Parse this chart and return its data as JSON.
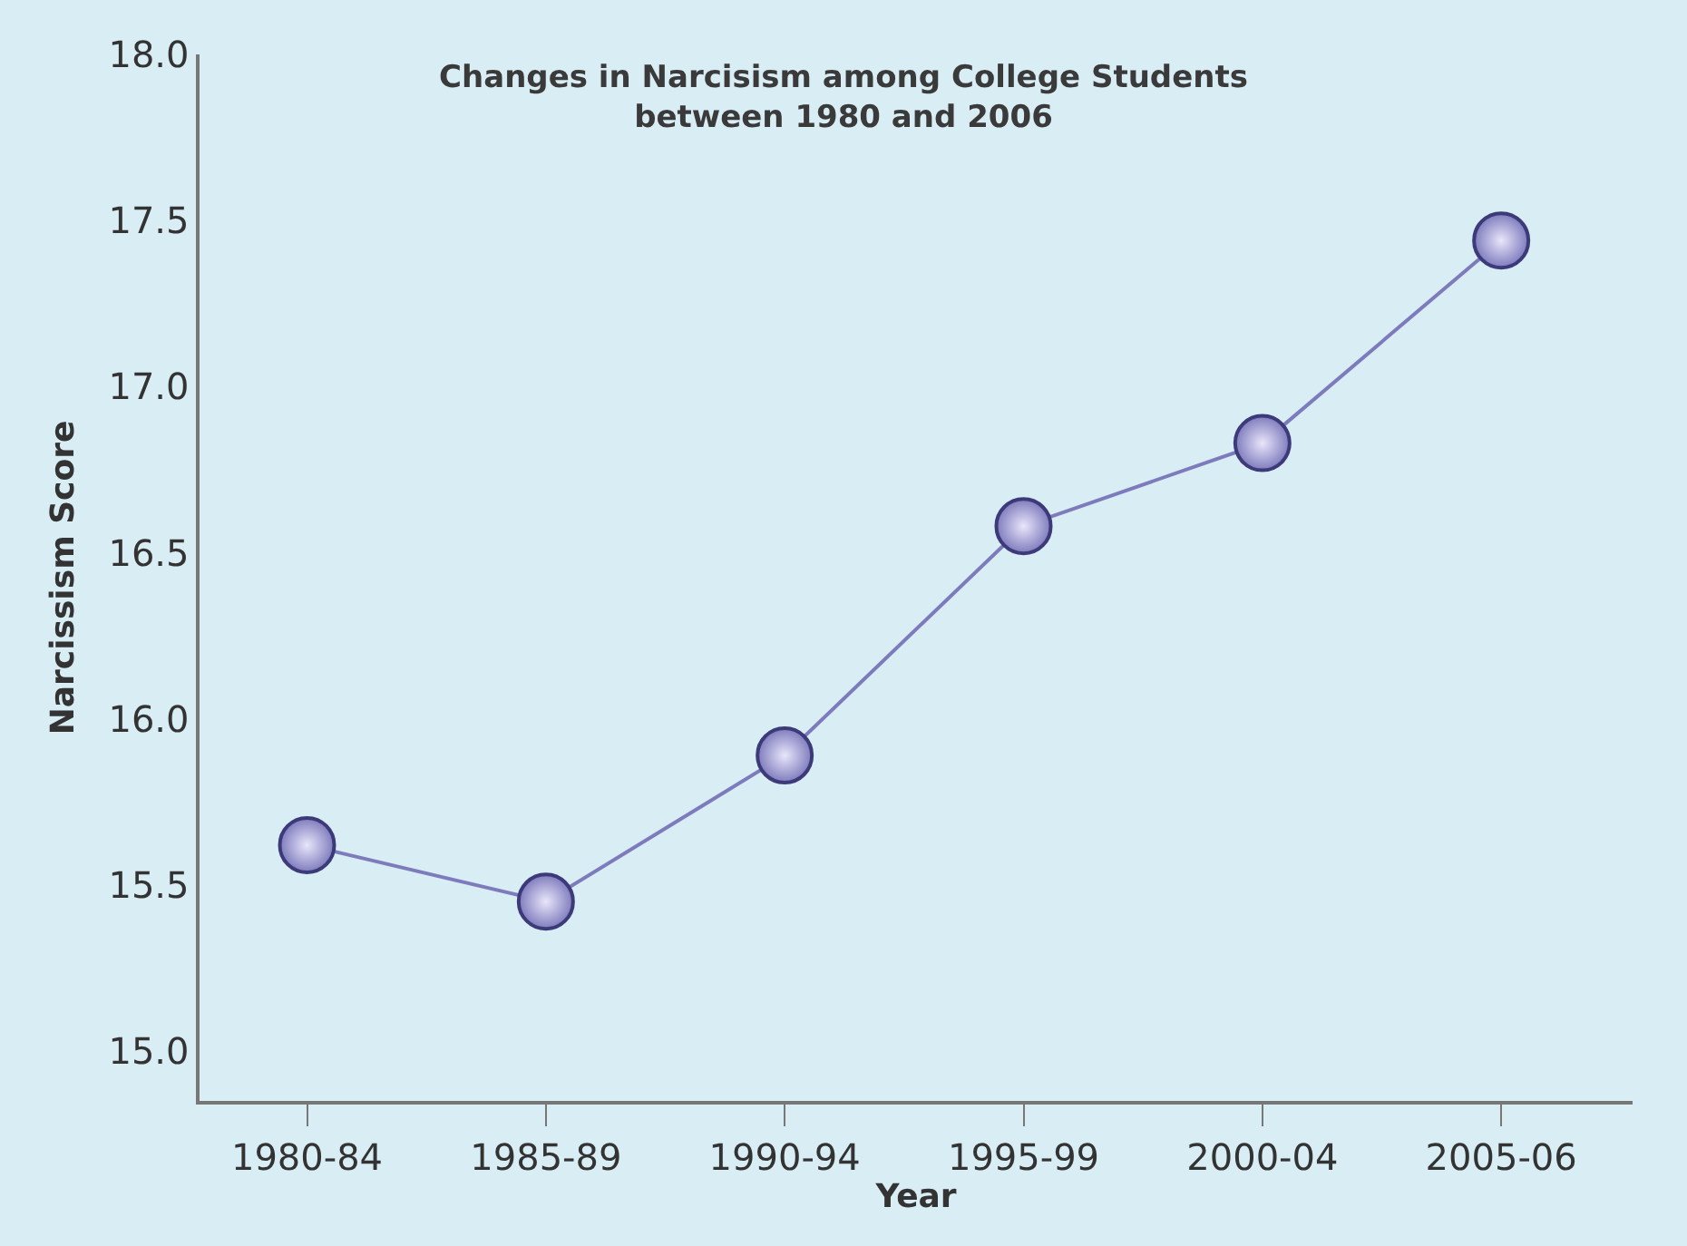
{
  "chart_data": {
    "type": "line",
    "title": "Changes in Narcisism among College Students\nbetween 1980 and 2006",
    "xlabel": "Year",
    "ylabel": "Narcissism Score",
    "categories": [
      "1980-84",
      "1985-89",
      "1990-94",
      "1995-99",
      "2000-04",
      "2005-06"
    ],
    "series": [
      {
        "color": "#7e7bbd",
        "values": [
          15.62,
          15.45,
          15.89,
          16.58,
          16.83,
          17.44
        ]
      }
    ],
    "ylim": [
      14.85,
      18.0
    ],
    "yticks": [
      {
        "value": 15.0,
        "label": "15.0"
      },
      {
        "value": 15.5,
        "label": "15.5"
      },
      {
        "value": 16.0,
        "label": "16.0"
      },
      {
        "value": 16.5,
        "label": "16.5"
      },
      {
        "value": 17.0,
        "label": "17.0"
      },
      {
        "value": 17.5,
        "label": "17.5"
      },
      {
        "value": 18.0,
        "label": "18.0"
      }
    ],
    "grid": false,
    "marker": "circle",
    "line_style": "solid"
  }
}
